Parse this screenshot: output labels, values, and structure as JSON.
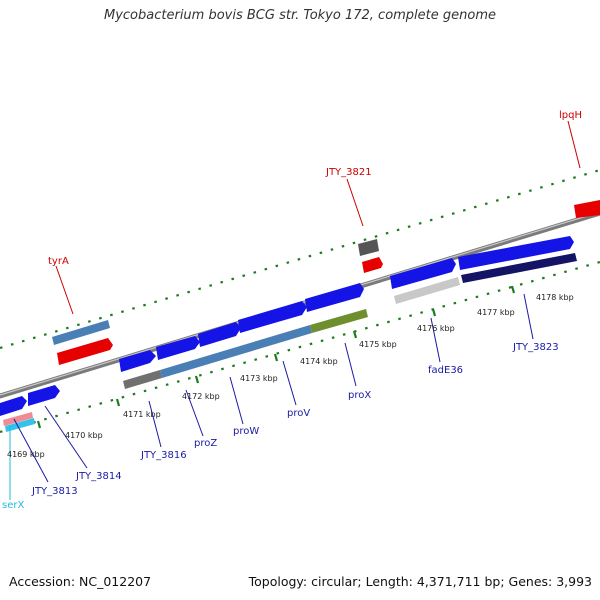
{
  "title": "Mycobacterium bovis BCG str. Tokyo 172, complete genome",
  "footer": {
    "accession": "Accession: NC_012207",
    "summary": "Topology: circular; Length: 4,371,711 bp; Genes: 3,993"
  },
  "colors": {
    "backbone": "#8a8a8a",
    "ruler": "#1e7a1e",
    "forward_cds": "#1414e6",
    "red_feature": "#e60000",
    "label_blue": "#1a1aa6",
    "label_red": "#cc0000",
    "label_cyan": "#22bbdd"
  },
  "ticks": [
    "4169 kbp",
    "4170 kbp",
    "4171 kbp",
    "4172 kbp",
    "4173 kbp",
    "4174 kbp",
    "4175 kbp",
    "4176 kbp",
    "4177 kbp",
    "4178 kbp"
  ],
  "labels": {
    "tyrA": "tyrA",
    "jty3821": "JTY_3821",
    "lpqH": "lpqH",
    "serX": "serX",
    "jty3813": "JTY_3813",
    "jty3814": "JTY_3814",
    "jty3816": "JTY_3816",
    "proZ": "proZ",
    "proW": "proW",
    "proV": "proV",
    "proX": "proX",
    "fadE36": "fadE36",
    "jty3823": "JTY_3823"
  }
}
